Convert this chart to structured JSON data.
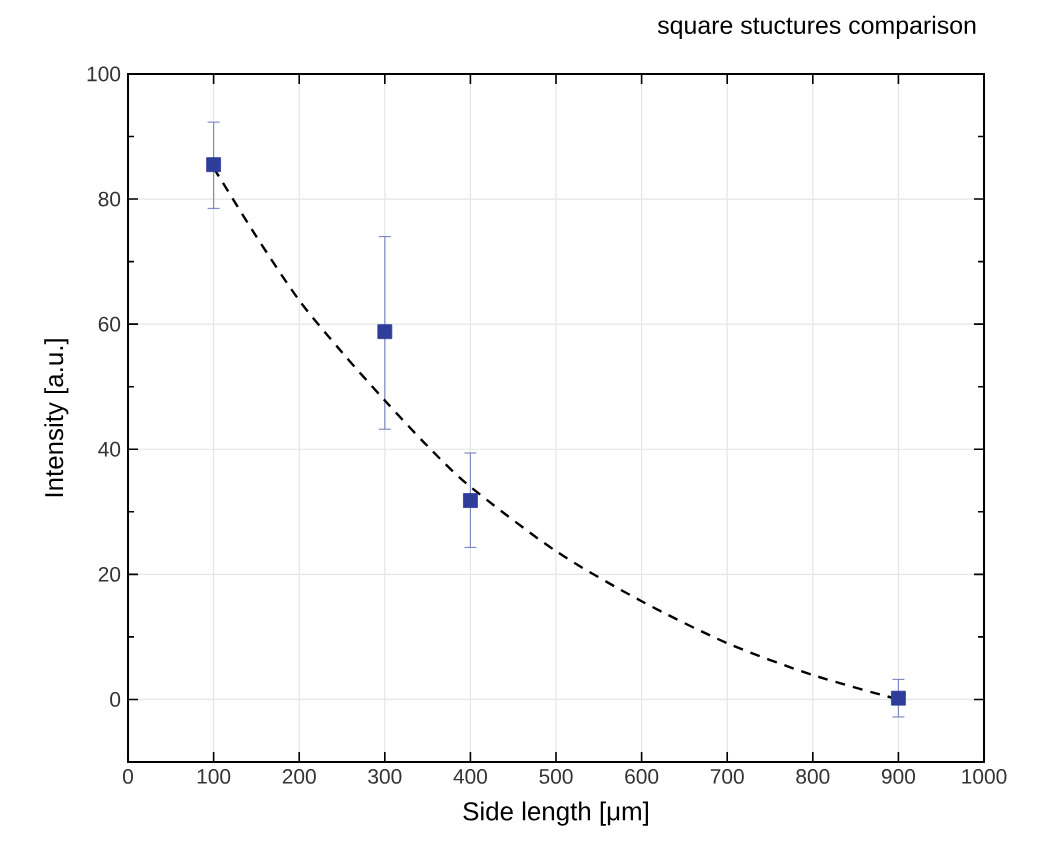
{
  "chart_data": {
    "type": "scatter",
    "title": "square stuctures comparison",
    "xlabel": "Side length [μm]",
    "ylabel": "Intensity [a.u.]",
    "xlim": [
      0,
      1000
    ],
    "xticks": [
      0,
      100,
      200,
      300,
      400,
      500,
      600,
      700,
      800,
      900,
      1000
    ],
    "ylim": [
      -10,
      100
    ],
    "yticks": [
      0,
      20,
      40,
      60,
      80,
      100
    ],
    "grid": true,
    "series": [
      {
        "color": "#2e3d99",
        "marker": "square",
        "x": [
          100,
          300,
          400,
          900
        ],
        "values": [
          85.5,
          58.8,
          31.8,
          0.2
        ],
        "errors": [
          [
            78.5,
            92.3
          ],
          [
            43.2,
            74
          ],
          [
            24.3,
            39.4
          ],
          3
        ]
      },
      {
        "type": "line",
        "color": "#000000",
        "marker": "none",
        "line_style": "dashed",
        "x": [
          100,
          150,
          200,
          250,
          300,
          350,
          400,
          500,
          600,
          700,
          800,
          900
        ],
        "values": [
          85,
          74,
          63.8,
          55.5,
          47.8,
          40.5,
          34,
          23.7,
          15.7,
          9,
          3.9,
          0
        ]
      }
    ]
  }
}
